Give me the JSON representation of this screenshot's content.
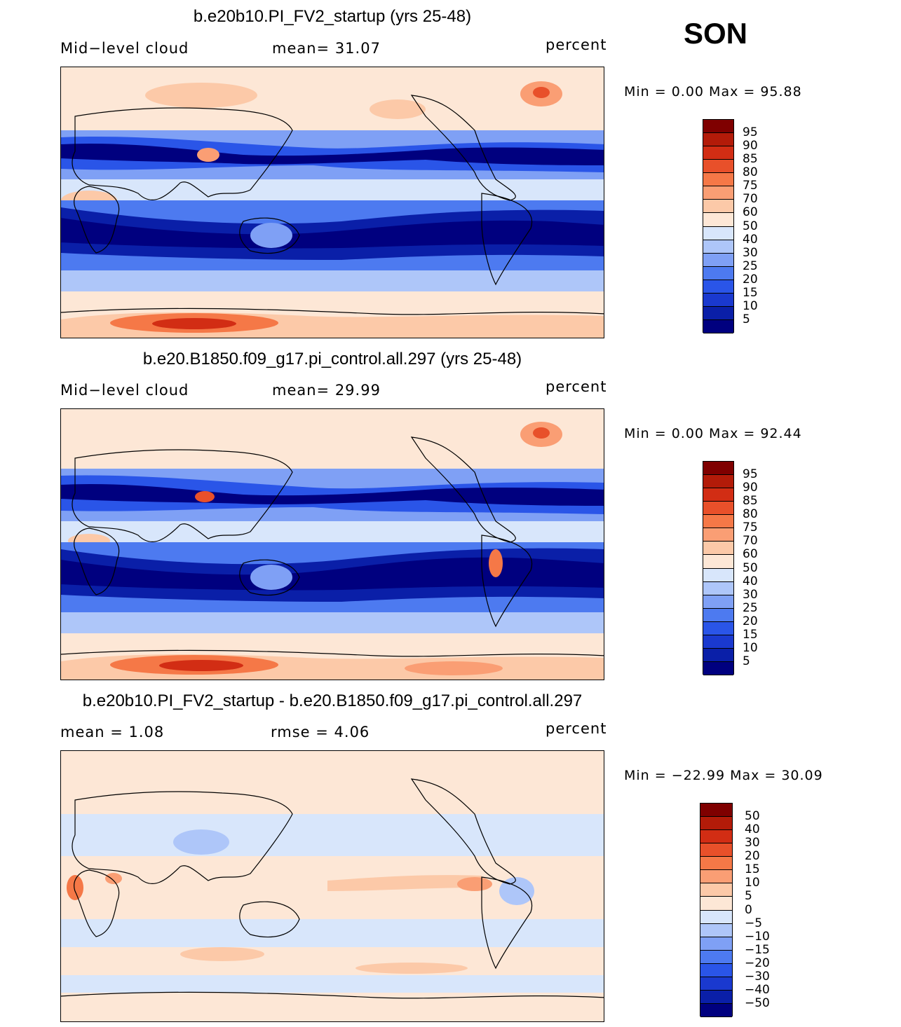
{
  "season": "SON",
  "colors": {
    "abs_scale": [
      "#00007f",
      "#0a1fa8",
      "#1a39cf",
      "#2a55e8",
      "#4d7af0",
      "#7fa0f5",
      "#aec6f9",
      "#d8e6fb",
      "#fde7d6",
      "#fcc9a8",
      "#fa9e74",
      "#f57847",
      "#e8502a",
      "#d22d14",
      "#b31b09",
      "#7f0000"
    ],
    "diff_scale": [
      "#00007f",
      "#0a1fa8",
      "#1a39cf",
      "#2a55e8",
      "#4d7af0",
      "#7fa0f5",
      "#aec6f9",
      "#d8e6fb",
      "#fde7d6",
      "#fcc9a8",
      "#fa9e74",
      "#f57847",
      "#e8502a",
      "#d22d14",
      "#b31b09",
      "#7f0000"
    ]
  },
  "panels": [
    {
      "title": "b.e20b10.PI_FV2_startup (yrs 25-48)",
      "left_text": "Mid−level  cloud",
      "mid_text": "mean=   31.07",
      "units": "percent",
      "minmax": "Min  =     0.00  Max  =    95.88",
      "levels": [
        "95",
        "90",
        "85",
        "80",
        "75",
        "70",
        "60",
        "50",
        "40",
        "30",
        "25",
        "20",
        "15",
        "10",
        "5"
      ],
      "type": "abs"
    },
    {
      "title": "b.e20.B1850.f09_g17.pi_control.all.297 (yrs 25-48)",
      "left_text": "Mid−level  cloud",
      "mid_text": "mean=   29.99",
      "units": "percent",
      "minmax": "Min  =     0.00  Max  =    92.44",
      "levels": [
        "95",
        "90",
        "85",
        "80",
        "75",
        "70",
        "60",
        "50",
        "40",
        "30",
        "25",
        "20",
        "15",
        "10",
        "5"
      ],
      "type": "abs"
    },
    {
      "title": "b.e20b10.PI_FV2_startup - b.e20.B1850.f09_g17.pi_control.all.297",
      "left_text": "mean  =      1.08",
      "mid_text": "rmse  =     4.06",
      "units": "percent",
      "minmax": "Min  = −22.99  Max  =    30.09",
      "levels": [
        "50",
        "40",
        "30",
        "20",
        "15",
        "10",
        "5",
        "0",
        "−5",
        "−10",
        "−15",
        "−20",
        "−30",
        "−40",
        "−50"
      ],
      "type": "diff"
    }
  ]
}
